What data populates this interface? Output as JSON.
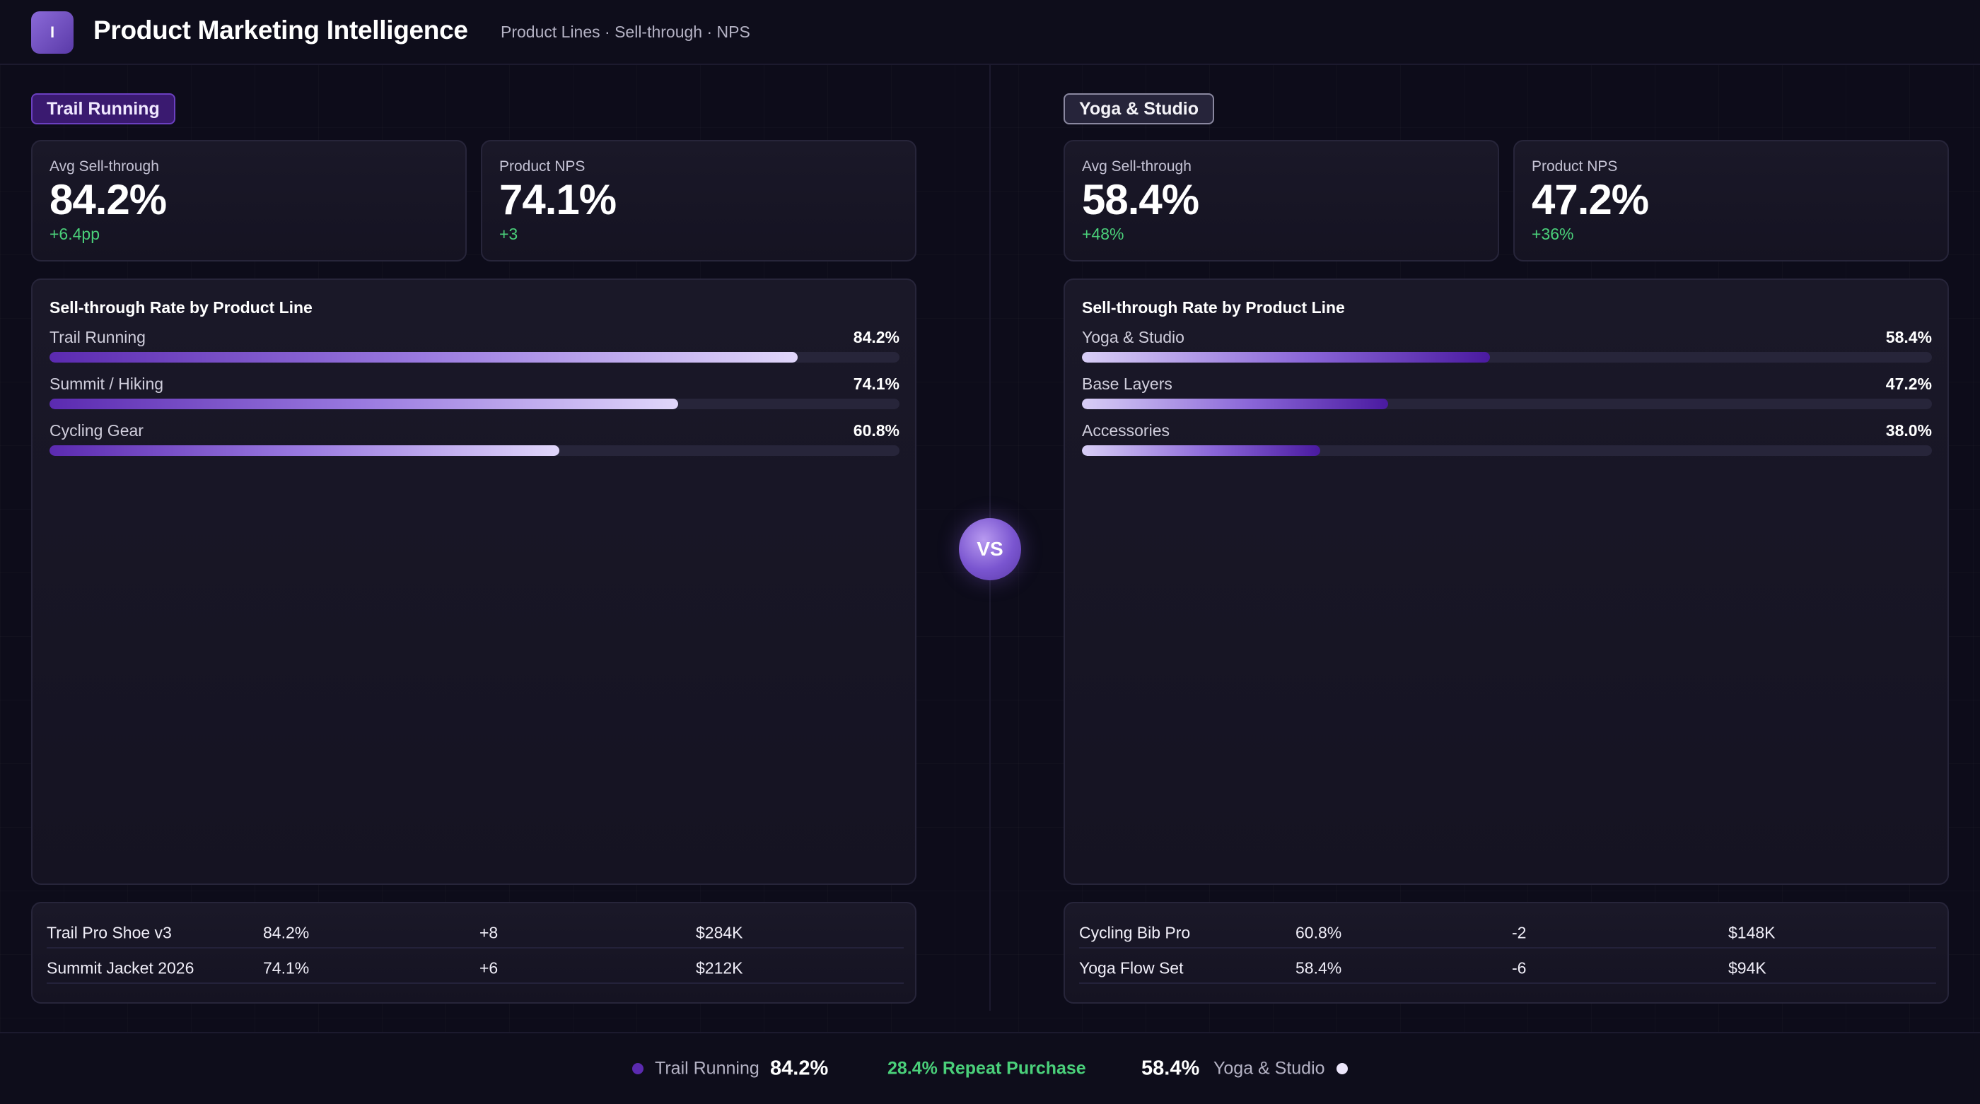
{
  "app": {
    "logo_letter": "I",
    "title": "Product Marketing Intelligence",
    "subtitle": "Product Lines · Sell-through · NPS"
  },
  "vs_label": "VS",
  "left": {
    "segment": "Trail Running",
    "kpis": [
      {
        "label": "Avg Sell-through",
        "value": "84.2%",
        "delta": "+6.4pp"
      },
      {
        "label": "Product NPS",
        "value": "74.1%",
        "delta": "+3"
      }
    ],
    "chart_title": "Sell-through Rate by Product Line",
    "bars": [
      {
        "label": "Trail Running",
        "value": 84.2,
        "display": "84.2%",
        "fill": 0.88
      },
      {
        "label": "Summit / Hiking",
        "value": 74.1,
        "display": "74.1%",
        "fill": 0.74
      },
      {
        "label": "Cycling Gear",
        "value": 60.8,
        "display": "60.8%",
        "fill": 0.6
      }
    ],
    "table": [
      [
        "Trail Pro Shoe v3",
        "84.2%",
        "+8",
        "$284K"
      ],
      [
        "Summit Jacket 2026",
        "74.1%",
        "+6",
        "$212K"
      ]
    ]
  },
  "right": {
    "segment": "Yoga & Studio",
    "kpis": [
      {
        "label": "Avg Sell-through",
        "value": "58.4%",
        "delta": "+48%"
      },
      {
        "label": "Product NPS",
        "value": "47.2%",
        "delta": "+36%"
      }
    ],
    "chart_title": "Sell-through Rate by Product Line",
    "bars": [
      {
        "label": "Yoga & Studio",
        "value": 58.4,
        "display": "58.4%",
        "fill": 0.48
      },
      {
        "label": "Base Layers",
        "value": 47.2,
        "display": "47.2%",
        "fill": 0.36
      },
      {
        "label": "Accessories",
        "value": 38.0,
        "display": "38.0%",
        "fill": 0.28
      }
    ],
    "table": [
      [
        "Cycling Bib Pro",
        "60.8%",
        "-2",
        "$148K"
      ],
      [
        "Yoga Flow Set",
        "58.4%",
        "-6",
        "$94K"
      ]
    ]
  },
  "footer": {
    "left_name": "Trail Running",
    "left_value": "84.2%",
    "center": "28.4% Repeat Purchase",
    "right_value": "58.4%",
    "right_name": "Yoga & Studio"
  },
  "colors": {
    "accent_purple": "#5b2ab0",
    "accent_light": "#ece6fb",
    "positive_green": "#4ad07a",
    "background": "#0d0c1a"
  }
}
